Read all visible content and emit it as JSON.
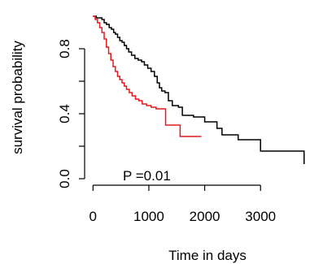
{
  "chart_data": {
    "type": "line",
    "title": "",
    "xlabel": "Time in days",
    "ylabel": "survival probability",
    "xlim": [
      -150,
      3900
    ],
    "ylim": [
      -0.04,
      1.03
    ],
    "xticks": [
      0,
      1000,
      2000,
      3000
    ],
    "xtick_labels": [
      "0",
      "1000",
      "2000",
      "3000"
    ],
    "yticks": [
      0.0,
      0.2,
      0.4,
      0.6,
      0.8
    ],
    "ytick_labels": [
      "0.0",
      "",
      "0.4",
      "",
      "0.8"
    ],
    "grid": false,
    "legend": "none",
    "step": true,
    "annotation": {
      "text": "P =0.01",
      "x": 850,
      "y": 0.01
    },
    "series": [
      {
        "color": "#000000",
        "x": [
          0,
          60,
          160,
          200,
          240,
          290,
          330,
          370,
          400,
          440,
          480,
          520,
          560,
          600,
          640,
          690,
          750,
          810,
          870,
          920,
          980,
          1040,
          1100,
          1150,
          1190,
          1230,
          1290,
          1350,
          1420,
          1530,
          1600,
          1800,
          2000,
          2220,
          2310,
          2420,
          2600,
          3000,
          3780
        ],
        "y": [
          1.0,
          0.99,
          0.98,
          0.96,
          0.95,
          0.93,
          0.92,
          0.9,
          0.89,
          0.87,
          0.85,
          0.84,
          0.82,
          0.8,
          0.78,
          0.76,
          0.74,
          0.73,
          0.72,
          0.7,
          0.68,
          0.66,
          0.63,
          0.59,
          0.56,
          0.54,
          0.53,
          0.48,
          0.45,
          0.44,
          0.39,
          0.38,
          0.35,
          0.31,
          0.27,
          0.27,
          0.24,
          0.17,
          0.09
        ]
      },
      {
        "color": "#e41a1c",
        "x": [
          0,
          40,
          80,
          120,
          160,
          200,
          240,
          280,
          320,
          360,
          400,
          440,
          480,
          520,
          560,
          600,
          650,
          700,
          760,
          820,
          880,
          960,
          1040,
          1130,
          1200,
          1300,
          1330,
          1560,
          1940
        ],
        "y": [
          1.0,
          0.98,
          0.96,
          0.93,
          0.9,
          0.86,
          0.81,
          0.77,
          0.73,
          0.69,
          0.66,
          0.63,
          0.61,
          0.59,
          0.57,
          0.55,
          0.53,
          0.51,
          0.49,
          0.48,
          0.46,
          0.45,
          0.44,
          0.43,
          0.43,
          0.33,
          0.33,
          0.26,
          0.26
        ]
      }
    ]
  }
}
